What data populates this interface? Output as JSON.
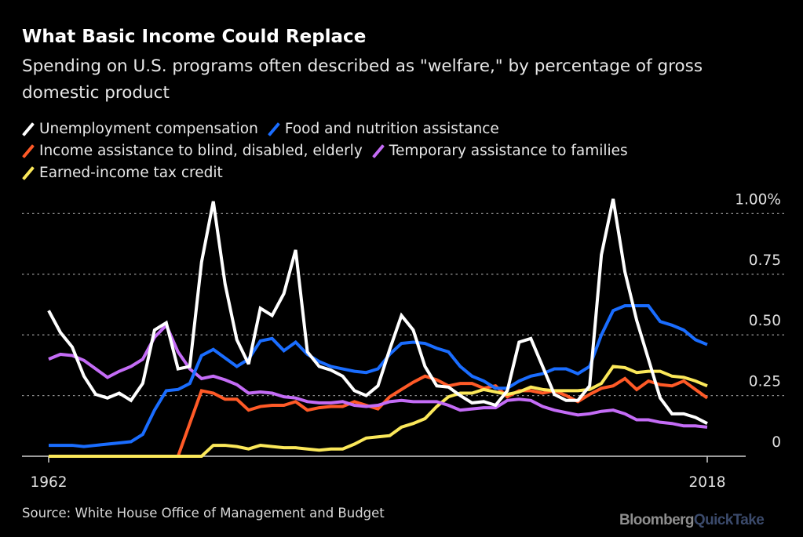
{
  "chart_data": {
    "type": "line",
    "title": "What Basic Income Could Replace",
    "subtitle": "Spending on U.S. programs often described as \"welfare,\" by percentage of gross domestic product",
    "source": "Source: White House Office of Management and Budget",
    "logo": {
      "part1": "Bloomberg",
      "part2": "QuickTake"
    },
    "x_start": 1962,
    "x_end": 2018,
    "x_tick_labels": [
      "1962",
      "2018"
    ],
    "y_ticks": [
      0,
      0.25,
      0.5,
      0.75,
      1.0
    ],
    "y_tick_labels": [
      "0",
      "0.25",
      "0.50",
      "0.75",
      "1.00%"
    ],
    "ylim": [
      0,
      1.0
    ],
    "grid": "horizontal dotted",
    "legend_position": "top-left",
    "series": [
      {
        "name": "Unemployment compensation",
        "color": "#ffffff",
        "values": [
          0.6,
          0.51,
          0.45,
          0.33,
          0.255,
          0.24,
          0.26,
          0.23,
          0.3,
          0.52,
          0.55,
          0.36,
          0.37,
          0.8,
          1.05,
          0.71,
          0.48,
          0.38,
          0.61,
          0.58,
          0.67,
          0.85,
          0.43,
          0.37,
          0.355,
          0.33,
          0.27,
          0.25,
          0.29,
          0.44,
          0.58,
          0.52,
          0.37,
          0.29,
          0.285,
          0.25,
          0.22,
          0.225,
          0.21,
          0.27,
          0.47,
          0.485,
          0.37,
          0.255,
          0.23,
          0.23,
          0.29,
          0.83,
          1.06,
          0.76,
          0.56,
          0.4,
          0.24,
          0.175,
          0.175,
          0.16,
          0.135
        ]
      },
      {
        "name": "Food and nutrition assistance",
        "color": "#1a6dff",
        "values": [
          0.045,
          0.045,
          0.045,
          0.04,
          0.045,
          0.05,
          0.055,
          0.06,
          0.09,
          0.19,
          0.27,
          0.275,
          0.3,
          0.415,
          0.44,
          0.405,
          0.37,
          0.4,
          0.475,
          0.485,
          0.435,
          0.47,
          0.42,
          0.39,
          0.37,
          0.36,
          0.35,
          0.345,
          0.36,
          0.42,
          0.465,
          0.47,
          0.465,
          0.445,
          0.43,
          0.37,
          0.33,
          0.31,
          0.28,
          0.28,
          0.31,
          0.33,
          0.34,
          0.36,
          0.36,
          0.34,
          0.37,
          0.5,
          0.6,
          0.62,
          0.62,
          0.62,
          0.555,
          0.54,
          0.52,
          0.48,
          0.46
        ]
      },
      {
        "name": "Income assistance to blind, disabled, elderly",
        "color": "#ff5a27",
        "values": [
          0,
          0,
          0,
          0,
          0,
          0,
          0,
          0,
          0,
          0,
          0,
          0,
          0.135,
          0.27,
          0.26,
          0.235,
          0.235,
          0.19,
          0.205,
          0.21,
          0.21,
          0.225,
          0.19,
          0.2,
          0.205,
          0.205,
          0.225,
          0.21,
          0.195,
          0.245,
          0.275,
          0.305,
          0.33,
          0.315,
          0.29,
          0.3,
          0.3,
          0.28,
          0.29,
          0.245,
          0.27,
          0.27,
          0.26,
          0.27,
          0.25,
          0.225,
          0.255,
          0.28,
          0.29,
          0.32,
          0.275,
          0.31,
          0.295,
          0.29,
          0.31,
          0.275,
          0.24
        ]
      },
      {
        "name": "Temporary assistance to families",
        "color": "#c46cf6",
        "values": [
          0.4,
          0.42,
          0.415,
          0.395,
          0.36,
          0.325,
          0.35,
          0.37,
          0.4,
          0.49,
          0.54,
          0.43,
          0.36,
          0.32,
          0.33,
          0.315,
          0.295,
          0.26,
          0.265,
          0.26,
          0.245,
          0.24,
          0.225,
          0.22,
          0.22,
          0.225,
          0.21,
          0.205,
          0.21,
          0.225,
          0.23,
          0.225,
          0.225,
          0.225,
          0.21,
          0.19,
          0.195,
          0.2,
          0.2,
          0.23,
          0.235,
          0.23,
          0.205,
          0.19,
          0.18,
          0.17,
          0.175,
          0.185,
          0.19,
          0.175,
          0.15,
          0.15,
          0.14,
          0.135,
          0.125,
          0.125,
          0.12
        ]
      },
      {
        "name": "Earned-income tax credit",
        "color": "#fbe85a",
        "values": [
          0,
          0,
          0,
          0,
          0,
          0,
          0,
          0,
          0,
          0,
          0,
          0,
          0,
          0,
          0.045,
          0.045,
          0.04,
          0.03,
          0.045,
          0.04,
          0.035,
          0.035,
          0.03,
          0.025,
          0.03,
          0.03,
          0.05,
          0.075,
          0.08,
          0.085,
          0.12,
          0.135,
          0.155,
          0.205,
          0.245,
          0.26,
          0.26,
          0.275,
          0.265,
          0.255,
          0.265,
          0.285,
          0.275,
          0.27,
          0.27,
          0.27,
          0.275,
          0.3,
          0.37,
          0.365,
          0.345,
          0.35,
          0.35,
          0.33,
          0.325,
          0.31,
          0.29
        ]
      }
    ]
  }
}
